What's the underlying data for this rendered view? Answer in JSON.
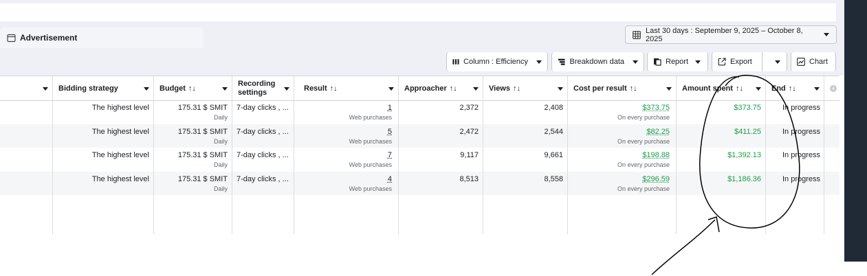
{
  "tab": {
    "label": "Advertisement",
    "icon": "window-icon"
  },
  "date_range": {
    "label": "Last 30 days : September 9, 2025 – October 8, 2025"
  },
  "toolbar": {
    "columns": "Column : Efficiency",
    "breakdown": "Breakdown data",
    "report": "Report",
    "export": "Export",
    "chart": "Chart"
  },
  "headers": {
    "bidding": "Bidding strategy",
    "budget": "Budget",
    "recording_1": "Recording",
    "recording_2": "settings",
    "result": "Result",
    "approacher": "Approacher",
    "views": "Views",
    "cost_per_result": "Cost per result",
    "amount_spent": "Amount spent",
    "end": "End",
    "sort_symbol": "↑↓"
  },
  "rows": [
    {
      "bidding": "The highest level",
      "budget": "175.31 $ SMIT",
      "budget_sub": "Daily",
      "recording": "7-day clicks , ...",
      "result": "1",
      "result_sub": "Web purchases",
      "approacher": "2,372",
      "views": "2,408",
      "cpr": "$373.75",
      "cpr_sub": "On every purchase",
      "spent": "$373.75",
      "end": "In progress"
    },
    {
      "bidding": "The highest level",
      "budget": "175.31 $ SMIT",
      "budget_sub": "Daily",
      "recording": "7-day clicks , ...",
      "result": "5",
      "result_sub": "Web purchases",
      "approacher": "2,472",
      "views": "2,544",
      "cpr": "$82.25",
      "cpr_sub": "On every purchase",
      "spent": "$411.25",
      "end": "In progress"
    },
    {
      "bidding": "The highest level",
      "budget": "175.31 $ SMIT",
      "budget_sub": "Daily",
      "recording": "7-day clicks , ...",
      "result": "7",
      "result_sub": "Web purchases",
      "approacher": "9,117",
      "views": "9,661",
      "cpr": "$198.88",
      "cpr_sub": "On every purchase",
      "spent": "$1,392.13",
      "end": "In progress"
    },
    {
      "bidding": "The highest level",
      "budget": "175.31 $ SMIT",
      "budget_sub": "Daily",
      "recording": "7-day clicks , ...",
      "result": "4",
      "result_sub": "Web purchases",
      "approacher": "8,513",
      "views": "8,558",
      "cpr": "$296.59",
      "cpr_sub": "On every purchase",
      "spent": "$1,186.36",
      "end": "In progress"
    }
  ],
  "colors": {
    "accent_green": "#1a9e4b",
    "rail": "#1f2a36"
  }
}
